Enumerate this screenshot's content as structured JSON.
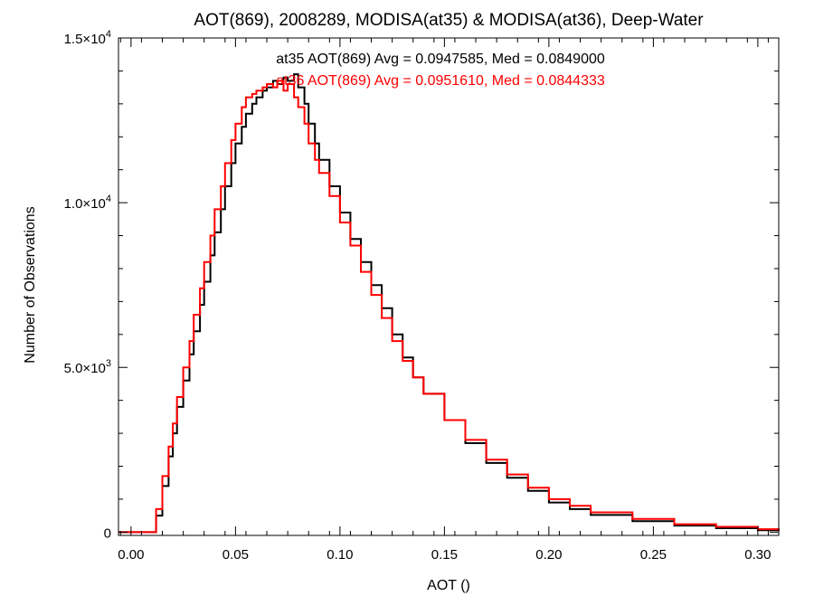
{
  "chart_data": {
    "type": "line",
    "title": "AOT(869), 2008289, MODISA(at35) & MODISA(at36), Deep-Water",
    "xlabel": "AOT ()",
    "ylabel": "Number of Observations",
    "xlim": [
      -0.006,
      0.31
    ],
    "ylim": [
      -100,
      15000
    ],
    "x_ticks": [
      0.0,
      0.05,
      0.1,
      0.15,
      0.2,
      0.25,
      0.3
    ],
    "x_tick_labels": [
      "0.00",
      "0.05",
      "0.10",
      "0.15",
      "0.20",
      "0.25",
      "0.30"
    ],
    "y_ticks": [
      0,
      5000,
      10000,
      15000
    ],
    "y_tick_labels": [
      {
        "mantissa": "0",
        "exponent": ""
      },
      {
        "mantissa": "5.0×10",
        "exponent": "3"
      },
      {
        "mantissa": "1.0×10",
        "exponent": "4"
      },
      {
        "mantissa": "1.5×10",
        "exponent": "4"
      }
    ],
    "grid": false,
    "step": true,
    "series": [
      {
        "name": "at35",
        "color": "#000000",
        "annotation": "at35 AOT(869) Avg = 0.0947585, Med = 0.0849000",
        "x": [
          -0.006,
          0.005,
          0.01,
          0.012,
          0.015,
          0.018,
          0.02,
          0.022,
          0.025,
          0.028,
          0.03,
          0.033,
          0.035,
          0.038,
          0.04,
          0.043,
          0.045,
          0.048,
          0.05,
          0.053,
          0.055,
          0.058,
          0.06,
          0.063,
          0.065,
          0.068,
          0.07,
          0.073,
          0.075,
          0.078,
          0.08,
          0.083,
          0.085,
          0.088,
          0.09,
          0.095,
          0.1,
          0.105,
          0.11,
          0.115,
          0.12,
          0.125,
          0.13,
          0.135,
          0.14,
          0.15,
          0.16,
          0.17,
          0.18,
          0.19,
          0.2,
          0.21,
          0.22,
          0.24,
          0.26,
          0.28,
          0.3,
          0.31
        ],
        "y": [
          0,
          0,
          0,
          500,
          1400,
          2300,
          3000,
          3800,
          4600,
          5400,
          6100,
          6900,
          7600,
          8400,
          9100,
          9800,
          10500,
          11200,
          11800,
          12300,
          12700,
          13000,
          13200,
          13400,
          13500,
          13700,
          13600,
          13800,
          13700,
          13900,
          13500,
          13000,
          12400,
          11800,
          11300,
          10500,
          9700,
          8900,
          8200,
          7500,
          6800,
          6000,
          5300,
          4700,
          4200,
          3400,
          2700,
          2100,
          1650,
          1250,
          900,
          700,
          520,
          330,
          200,
          120,
          60,
          40
        ]
      },
      {
        "name": "at36",
        "color": "#ff0000",
        "annotation": "at36 AOT(869) Avg = 0.0951610, Med = 0.0844333",
        "x": [
          -0.006,
          0.005,
          0.01,
          0.012,
          0.015,
          0.018,
          0.02,
          0.022,
          0.025,
          0.028,
          0.03,
          0.033,
          0.035,
          0.038,
          0.04,
          0.043,
          0.045,
          0.048,
          0.05,
          0.053,
          0.055,
          0.058,
          0.06,
          0.063,
          0.065,
          0.068,
          0.07,
          0.073,
          0.075,
          0.078,
          0.08,
          0.083,
          0.085,
          0.088,
          0.09,
          0.095,
          0.1,
          0.105,
          0.11,
          0.115,
          0.12,
          0.125,
          0.13,
          0.135,
          0.14,
          0.15,
          0.16,
          0.17,
          0.18,
          0.19,
          0.2,
          0.21,
          0.22,
          0.24,
          0.26,
          0.28,
          0.3,
          0.31
        ],
        "y": [
          0,
          0,
          0,
          700,
          1700,
          2600,
          3300,
          4100,
          5000,
          5800,
          6600,
          7400,
          8200,
          9000,
          9800,
          10500,
          11200,
          11900,
          12400,
          12900,
          13200,
          13300,
          13400,
          13500,
          13600,
          13500,
          13700,
          13400,
          13600,
          13200,
          12900,
          12400,
          11800,
          11300,
          10900,
          10200,
          9400,
          8700,
          7900,
          7200,
          6500,
          5800,
          5200,
          4700,
          4200,
          3400,
          2800,
          2200,
          1750,
          1350,
          1000,
          800,
          600,
          400,
          240,
          160,
          90,
          60
        ]
      }
    ]
  }
}
